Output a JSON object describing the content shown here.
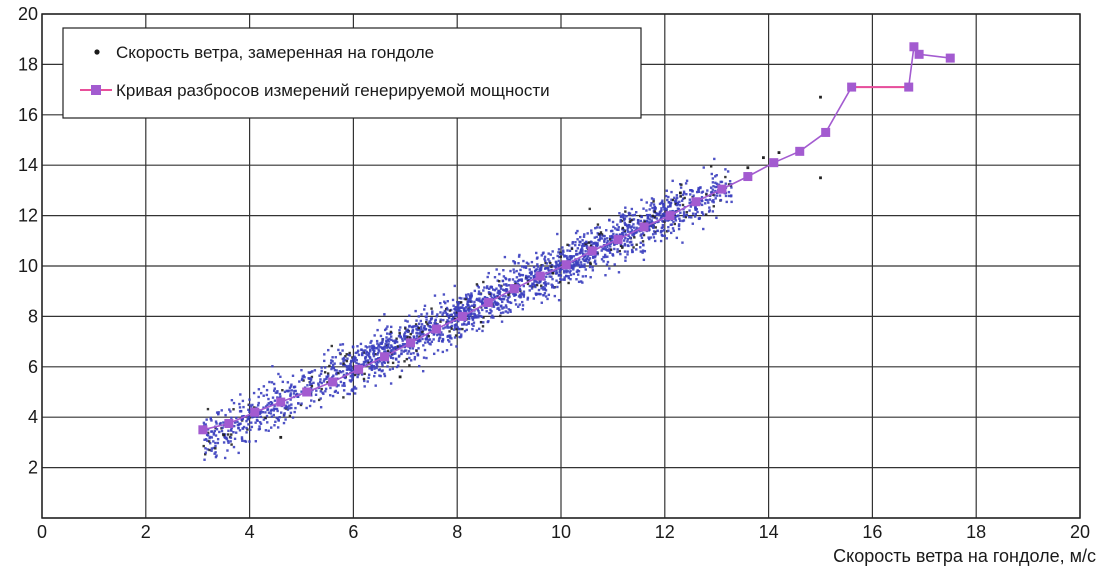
{
  "chart_data": {
    "type": "scatter",
    "xlabel": "Скорость ветра на гондоле, м/с",
    "ylabel": "",
    "xlim": [
      0,
      20
    ],
    "ylim": [
      0,
      20
    ],
    "x_ticks": [
      "0",
      "2",
      "4",
      "6",
      "8",
      "10",
      "12",
      "14",
      "16",
      "18",
      "20"
    ],
    "y_ticks": [
      "0",
      "2",
      "4",
      "6",
      "8",
      "10",
      "12",
      "14",
      "16",
      "18",
      "20"
    ],
    "grid": true,
    "legend_position": "top-left",
    "series": [
      {
        "name": "Скорость ветра, замеренная на гондоле",
        "kind": "scatter",
        "color": "#3b3fbf",
        "point_count": 2500,
        "x_range": [
          3.1,
          15.1
        ],
        "relation": "y ≈ x",
        "spread_y": 0.45,
        "sample_points": [
          {
            "x": 3.5,
            "y": 3.3
          },
          {
            "x": 4.6,
            "y": 3.2
          },
          {
            "x": 6.9,
            "y": 5.6
          },
          {
            "x": 12.3,
            "y": 12.9
          },
          {
            "x": 13.6,
            "y": 13.9
          },
          {
            "x": 13.9,
            "y": 14.3
          },
          {
            "x": 14.2,
            "y": 14.5
          },
          {
            "x": 15.0,
            "y": 16.7
          },
          {
            "x": 15.0,
            "y": 13.5
          }
        ]
      },
      {
        "name": "Кривая разбросов измерений генерируемой мощности",
        "kind": "line",
        "color": "#a35bd0",
        "line_color": "#e84f9a",
        "x": [
          3.1,
          3.6,
          4.1,
          4.6,
          5.1,
          5.6,
          6.1,
          6.6,
          7.1,
          7.6,
          8.1,
          8.6,
          9.1,
          9.6,
          10.1,
          10.6,
          11.1,
          11.6,
          12.1,
          12.6,
          13.1,
          13.6,
          14.1,
          14.6,
          15.1,
          15.6,
          16.7,
          16.8,
          16.9,
          17.5
        ],
        "y": [
          3.5,
          3.75,
          4.2,
          4.6,
          5.0,
          5.4,
          5.9,
          6.4,
          6.95,
          7.5,
          8.0,
          8.55,
          9.1,
          9.6,
          10.05,
          10.6,
          11.05,
          11.55,
          12.0,
          12.55,
          13.05,
          13.55,
          14.1,
          14.55,
          15.3,
          17.1,
          17.1,
          18.7,
          18.4,
          18.25
        ]
      }
    ]
  }
}
